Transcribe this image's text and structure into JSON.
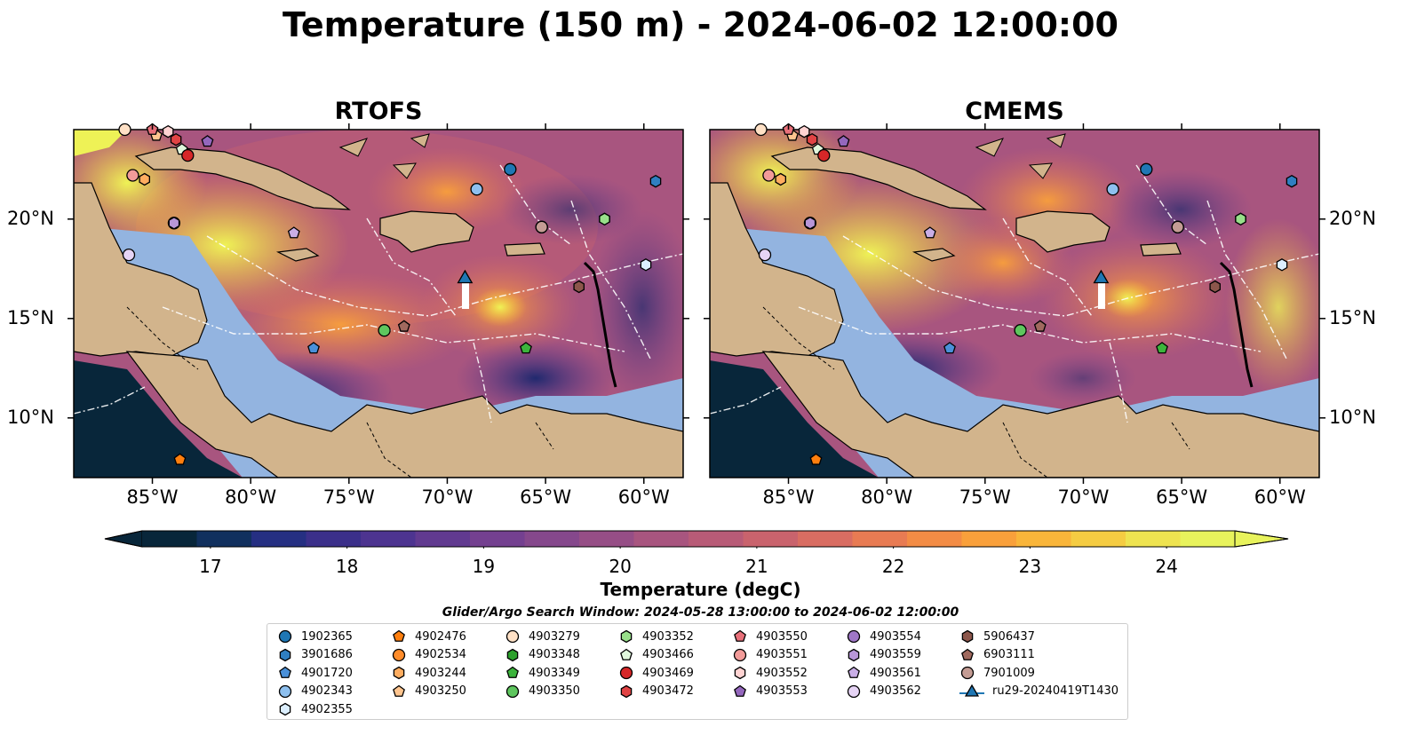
{
  "figure": {
    "title": "Temperature (150 m) - 2024-06-02 12:00:00"
  },
  "panels": [
    {
      "title": "RTOFS"
    },
    {
      "title": "CMEMS"
    }
  ],
  "map_axes": {
    "lon_ticks": [
      "85°W",
      "80°W",
      "75°W",
      "70°W",
      "65°W",
      "60°W"
    ],
    "lat_ticks_left": [
      "20°N",
      "15°N",
      "10°N"
    ],
    "lat_ticks_right": [
      "20°N",
      "15°N",
      "10°N"
    ],
    "lon_range": [
      -89,
      -58
    ],
    "lat_range": [
      7,
      24.5
    ]
  },
  "colorbar": {
    "label": "Temperature (degC)",
    "ticks": [
      "17",
      "18",
      "19",
      "20",
      "21",
      "22",
      "23",
      "24"
    ],
    "range": [
      16.5,
      24.5
    ],
    "extend": "both",
    "colors": [
      "#08263a",
      "#11305e",
      "#252f82",
      "#3b2f8a",
      "#4d3490",
      "#613a90",
      "#744090",
      "#85488c",
      "#964e86",
      "#a8557f",
      "#b85b77",
      "#c9636d",
      "#d96d62",
      "#e87b53",
      "#f38c45",
      "#f9a03b",
      "#f9b53a",
      "#f5cc42",
      "#eee350",
      "#e8f35c"
    ]
  },
  "legend": {
    "title": "Glider/Argo Search Window: 2024-05-28 13:00:00 to 2024-06-02 12:00:00",
    "items": [
      {
        "id": "1902365",
        "marker": "circle",
        "color": "#1f77b4"
      },
      {
        "id": "3901686",
        "marker": "hexagon",
        "color": "#2f7fc1"
      },
      {
        "id": "4901720",
        "marker": "pentagon",
        "color": "#4a90d9"
      },
      {
        "id": "4902343",
        "marker": "circle",
        "color": "#8ec0ef"
      },
      {
        "id": "4902355",
        "marker": "hexagon",
        "color": "#dcefff"
      },
      {
        "id": "4902476",
        "marker": "pentagon",
        "color": "#ff7f0e"
      },
      {
        "id": "4902534",
        "marker": "circle",
        "color": "#ff8c2a"
      },
      {
        "id": "4903244",
        "marker": "hexagon",
        "color": "#ffad60"
      },
      {
        "id": "4903250",
        "marker": "pentagon",
        "color": "#ffc58f"
      },
      {
        "id": "4903279",
        "marker": "circle",
        "color": "#ffe1c6"
      },
      {
        "id": "4903348",
        "marker": "hexagon",
        "color": "#2ca02c"
      },
      {
        "id": "4903349",
        "marker": "pentagon",
        "color": "#3cb43c"
      },
      {
        "id": "4903350",
        "marker": "circle",
        "color": "#5ec65e"
      },
      {
        "id": "4903352",
        "marker": "hexagon",
        "color": "#98df8a"
      },
      {
        "id": "4903466",
        "marker": "pentagon",
        "color": "#e0f7dc"
      },
      {
        "id": "4903469",
        "marker": "circle",
        "color": "#d62728"
      },
      {
        "id": "4903472",
        "marker": "hexagon",
        "color": "#e04344"
      },
      {
        "id": "4903550",
        "marker": "pentagon",
        "color": "#e8707a"
      },
      {
        "id": "4903551",
        "marker": "circle",
        "color": "#f29b99"
      },
      {
        "id": "4903552",
        "marker": "hexagon",
        "color": "#ffd3d2"
      },
      {
        "id": "4903553",
        "marker": "pentagon",
        "color": "#9467bd"
      },
      {
        "id": "4903554",
        "marker": "circle",
        "color": "#9f77c6"
      },
      {
        "id": "4903559",
        "marker": "hexagon",
        "color": "#b896d8"
      },
      {
        "id": "4903561",
        "marker": "pentagon",
        "color": "#c9aee6"
      },
      {
        "id": "4903562",
        "marker": "circle",
        "color": "#e6d4f5"
      },
      {
        "id": "5906437",
        "marker": "hexagon",
        "color": "#8c564b"
      },
      {
        "id": "6903111",
        "marker": "pentagon",
        "color": "#a0695e"
      },
      {
        "id": "7901009",
        "marker": "circle",
        "color": "#c49c94"
      },
      {
        "id": "ru29-20240419T1430",
        "marker": "glider-triangle",
        "color": "#1f77b4"
      }
    ]
  },
  "chart_data": {
    "type": "map",
    "title": "Temperature (150 m) - 2024-06-02 12:00:00",
    "variable": "Temperature (degC)",
    "glider": {
      "id": "ru29-20240419T1430",
      "lon": -69.1,
      "lat": 17.0
    },
    "floats": [
      {
        "id": "1902365",
        "lon": -66.8,
        "lat": 22.5
      },
      {
        "id": "3901686",
        "lon": -59.4,
        "lat": 21.9
      },
      {
        "id": "4901720",
        "lon": -76.8,
        "lat": 13.5
      },
      {
        "id": "4902343",
        "lon": -68.5,
        "lat": 21.5
      },
      {
        "id": "4902355",
        "lon": -59.9,
        "lat": 17.7
      },
      {
        "id": "4902476",
        "lon": -83.6,
        "lat": 7.9
      },
      {
        "id": "4902534",
        "lon": -65.2,
        "lat": 19.6
      },
      {
        "id": "4903244",
        "lon": -85.4,
        "lat": 22.0
      },
      {
        "id": "4903250",
        "lon": -84.8,
        "lat": 24.2
      },
      {
        "id": "4903279",
        "lon": -86.4,
        "lat": 24.5
      },
      {
        "id": "4903348",
        "lon": -62.0,
        "lat": 20.0
      },
      {
        "id": "4903349",
        "lon": -66.0,
        "lat": 13.5
      },
      {
        "id": "4903350",
        "lon": -73.2,
        "lat": 14.4
      },
      {
        "id": "4903352",
        "lon": -62.0,
        "lat": 20.0
      },
      {
        "id": "4903466",
        "lon": -83.5,
        "lat": 23.5
      },
      {
        "id": "4903469",
        "lon": -83.2,
        "lat": 23.2
      },
      {
        "id": "4903472",
        "lon": -83.8,
        "lat": 24.0
      },
      {
        "id": "4903550",
        "lon": -85.0,
        "lat": 24.5
      },
      {
        "id": "4903551",
        "lon": -86.0,
        "lat": 22.2
      },
      {
        "id": "4903552",
        "lon": -84.2,
        "lat": 24.4
      },
      {
        "id": "4903553",
        "lon": -82.2,
        "lat": 23.9
      },
      {
        "id": "4903554",
        "lon": -83.9,
        "lat": 19.8
      },
      {
        "id": "4903559",
        "lon": -83.9,
        "lat": 19.8
      },
      {
        "id": "4903561",
        "lon": -77.8,
        "lat": 19.3
      },
      {
        "id": "4903562",
        "lon": -86.2,
        "lat": 18.2
      },
      {
        "id": "5906437",
        "lon": -63.3,
        "lat": 16.6
      },
      {
        "id": "6903111",
        "lon": -72.2,
        "lat": 14.6
      },
      {
        "id": "7901009",
        "lon": -65.2,
        "lat": 19.6
      }
    ]
  }
}
